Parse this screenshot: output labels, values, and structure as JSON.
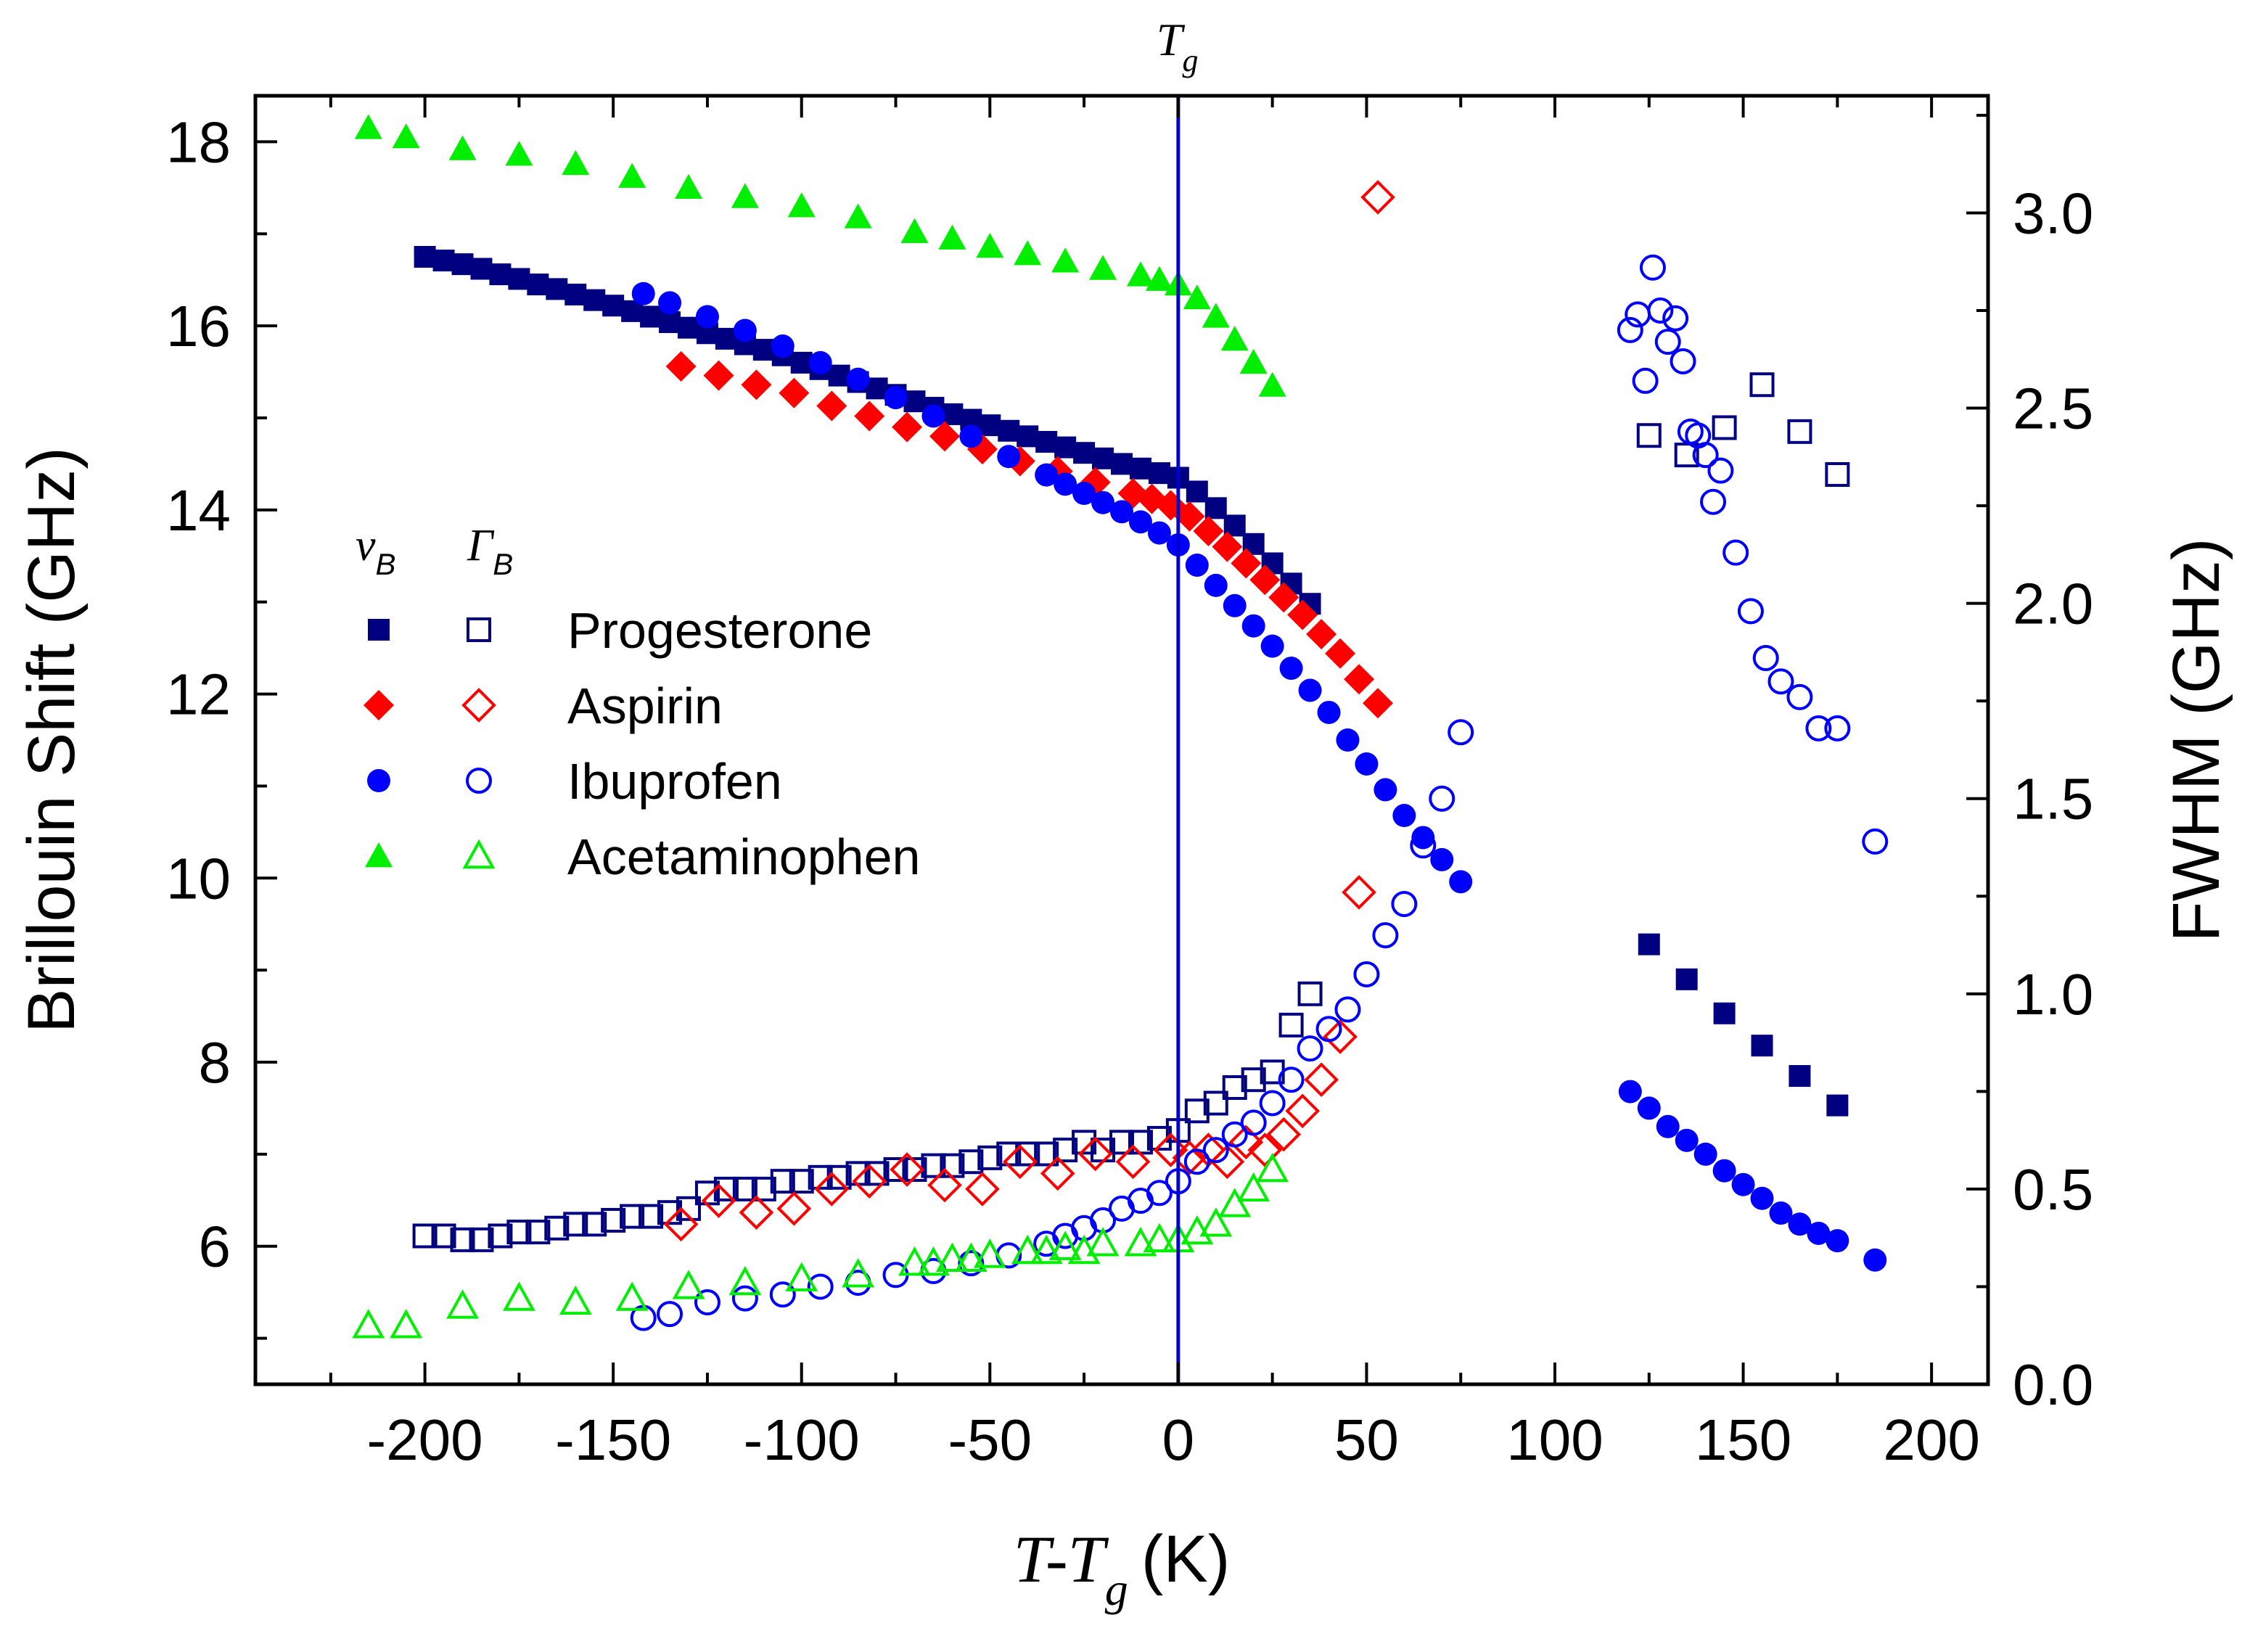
{
  "chart_data": {
    "type": "scatter",
    "title": "",
    "annotation": {
      "text": "T",
      "sub": "g"
    },
    "xaxis": {
      "label_italic": "T-T",
      "label_sub": "g",
      "label_unit": "(K)",
      "range": [
        -245,
        215
      ],
      "ticks": [
        -200,
        -150,
        -100,
        -50,
        0,
        50,
        100,
        150,
        200
      ]
    },
    "yaxis_left": {
      "label": "Brillouin Shift (GHz)",
      "range": [
        4.5,
        18.5
      ],
      "ticks": [
        6,
        8,
        10,
        12,
        14,
        16,
        18
      ]
    },
    "yaxis_right": {
      "label": "FWHM (GHz)",
      "range": [
        0.0,
        3.3
      ],
      "ticks": [
        "0.0",
        "0.5",
        "1.0",
        "1.5",
        "2.0",
        "2.5",
        "3.0"
      ]
    },
    "tg_line_x": 0,
    "legend": {
      "head_nu": "ν",
      "head_nu_sub": "B",
      "head_gamma": "Γ",
      "head_gamma_sub": "B",
      "entries": [
        {
          "name": "Progesterone",
          "color": "#000080",
          "marker": "square"
        },
        {
          "name": "Aspirin",
          "color": "#ff0000",
          "marker": "diamond"
        },
        {
          "name": "Ibuprofen",
          "color": "#0000ff",
          "marker": "circle"
        },
        {
          "name": "Acetaminophen",
          "color": "#00ee00",
          "marker": "triangle"
        }
      ]
    },
    "series": [
      {
        "name": "Progesterone",
        "quantity": "shift",
        "marker": "square",
        "filled": true,
        "color": "#000080",
        "x": [
          -200,
          -195,
          -190,
          -185,
          -180,
          -175,
          -170,
          -165,
          -160,
          -155,
          -150,
          -145,
          -140,
          -135,
          -130,
          -125,
          -120,
          -115,
          -110,
          -105,
          -100,
          -95,
          -90,
          -85,
          -80,
          -75,
          -70,
          -65,
          -60,
          -55,
          -50,
          -45,
          -40,
          -35,
          -30,
          -25,
          -20,
          -15,
          -10,
          -5,
          0,
          5,
          10,
          15,
          20,
          25,
          30,
          35,
          125,
          135,
          145,
          155,
          165,
          175
        ],
        "y": [
          16.75,
          16.71,
          16.67,
          16.62,
          16.56,
          16.51,
          16.45,
          16.4,
          16.34,
          16.28,
          16.22,
          16.16,
          16.1,
          16.04,
          15.98,
          15.92,
          15.86,
          15.8,
          15.74,
          15.68,
          15.6,
          15.53,
          15.46,
          15.39,
          15.32,
          15.25,
          15.18,
          15.11,
          15.04,
          14.98,
          14.92,
          14.86,
          14.8,
          14.74,
          14.68,
          14.62,
          14.56,
          14.5,
          14.45,
          14.4,
          14.35,
          14.2,
          14.02,
          13.83,
          13.63,
          13.42,
          13.2,
          12.98,
          9.28,
          8.9,
          8.53,
          8.18,
          7.85,
          7.53
        ]
      },
      {
        "name": "Progesterone",
        "quantity": "fwhm",
        "marker": "square",
        "filled": false,
        "color": "#000080",
        "x": [
          -200,
          -195,
          -190,
          -185,
          -180,
          -175,
          -170,
          -165,
          -160,
          -155,
          -150,
          -145,
          -140,
          -135,
          -130,
          -125,
          -120,
          -115,
          -110,
          -105,
          -100,
          -95,
          -90,
          -85,
          -80,
          -75,
          -70,
          -65,
          -60,
          -55,
          -50,
          -45,
          -40,
          -35,
          -30,
          -25,
          -20,
          -15,
          -10,
          -5,
          0,
          5,
          10,
          15,
          20,
          25,
          30,
          35,
          125,
          135,
          145,
          155,
          165,
          175
        ],
        "y": [
          0.38,
          0.38,
          0.37,
          0.37,
          0.38,
          0.39,
          0.39,
          0.4,
          0.41,
          0.41,
          0.42,
          0.43,
          0.43,
          0.44,
          0.45,
          0.49,
          0.5,
          0.5,
          0.5,
          0.52,
          0.52,
          0.53,
          0.53,
          0.54,
          0.54,
          0.55,
          0.55,
          0.56,
          0.56,
          0.57,
          0.58,
          0.59,
          0.59,
          0.59,
          0.6,
          0.62,
          0.6,
          0.62,
          0.62,
          0.63,
          0.65,
          0.7,
          0.72,
          0.76,
          0.78,
          0.8,
          0.92,
          1.0,
          2.43,
          2.38,
          2.45,
          2.56,
          2.44,
          2.33
        ]
      },
      {
        "name": "Aspirin",
        "quantity": "shift",
        "marker": "diamond",
        "filled": true,
        "color": "#ff0000",
        "x": [
          -132,
          -122,
          -112,
          -102,
          -92,
          -82,
          -72,
          -62,
          -52,
          -42,
          -32,
          -22,
          -12,
          -7,
          -2,
          3,
          8,
          13,
          18,
          23,
          28,
          33,
          38,
          43,
          48,
          53
        ],
        "y": [
          15.56,
          15.46,
          15.36,
          15.27,
          15.13,
          15.02,
          14.9,
          14.8,
          14.66,
          14.53,
          14.42,
          14.3,
          14.18,
          14.12,
          14.05,
          13.93,
          13.77,
          13.6,
          13.42,
          13.24,
          13.05,
          12.86,
          12.65,
          12.44,
          12.16,
          11.9
        ]
      },
      {
        "name": "Aspirin",
        "quantity": "fwhm",
        "marker": "diamond",
        "filled": false,
        "color": "#ff0000",
        "x": [
          -132,
          -122,
          -112,
          -102,
          -92,
          -82,
          -72,
          -62,
          -52,
          -42,
          -32,
          -22,
          -12,
          -2,
          3,
          8,
          13,
          18,
          23,
          28,
          33,
          38,
          43,
          48,
          53
        ],
        "y": [
          0.41,
          0.47,
          0.44,
          0.45,
          0.5,
          0.52,
          0.55,
          0.51,
          0.5,
          0.57,
          0.54,
          0.59,
          0.57,
          0.6,
          0.58,
          0.6,
          0.57,
          0.62,
          0.6,
          0.64,
          0.7,
          0.78,
          0.89,
          1.26,
          3.04
        ]
      },
      {
        "name": "Ibuprofen",
        "quantity": "shift",
        "marker": "circle",
        "filled": true,
        "color": "#0000ff",
        "x": [
          -142,
          -135,
          -125,
          -115,
          -105,
          -95,
          -85,
          -75,
          -65,
          -55,
          -45,
          -35,
          -30,
          -25,
          -20,
          -15,
          -10,
          -5,
          0,
          5,
          10,
          15,
          20,
          25,
          30,
          35,
          40,
          45,
          50,
          55,
          60,
          65,
          70,
          75,
          120,
          125,
          130,
          135,
          140,
          145,
          150,
          155,
          160,
          165,
          170,
          175,
          185
        ],
        "y": [
          16.35,
          16.25,
          16.1,
          15.95,
          15.78,
          15.6,
          15.42,
          15.22,
          15.02,
          14.8,
          14.58,
          14.38,
          14.28,
          14.18,
          14.08,
          13.98,
          13.87,
          13.75,
          13.62,
          13.4,
          13.18,
          12.96,
          12.74,
          12.52,
          12.28,
          12.04,
          11.8,
          11.5,
          11.24,
          10.96,
          10.68,
          10.44,
          10.2,
          9.96,
          7.68,
          7.5,
          7.3,
          7.15,
          7.0,
          6.82,
          6.67,
          6.52,
          6.36,
          6.24,
          6.14,
          6.06,
          5.85
        ]
      },
      {
        "name": "Ibuprofen",
        "quantity": "fwhm",
        "marker": "circle",
        "filled": false,
        "color": "#0000ff",
        "x": [
          -142,
          -135,
          -125,
          -115,
          -105,
          -95,
          -85,
          -75,
          -65,
          -55,
          -45,
          -35,
          -30,
          -25,
          -20,
          -15,
          -10,
          -5,
          0,
          5,
          10,
          15,
          20,
          25,
          30,
          35,
          40,
          45,
          50,
          55,
          60,
          65,
          70,
          75,
          120,
          122,
          124,
          126,
          128,
          130,
          132,
          134,
          136,
          138,
          140,
          142,
          144,
          148,
          152,
          156,
          160,
          165,
          170,
          175,
          185
        ],
        "y": [
          0.17,
          0.18,
          0.21,
          0.22,
          0.23,
          0.25,
          0.26,
          0.28,
          0.29,
          0.31,
          0.33,
          0.36,
          0.38,
          0.4,
          0.42,
          0.45,
          0.47,
          0.49,
          0.52,
          0.57,
          0.6,
          0.64,
          0.67,
          0.72,
          0.78,
          0.86,
          0.91,
          0.96,
          1.05,
          1.15,
          1.23,
          1.38,
          1.5,
          1.67,
          2.7,
          2.74,
          2.57,
          2.86,
          2.75,
          2.67,
          2.73,
          2.62,
          2.44,
          2.43,
          2.38,
          2.26,
          2.34,
          2.13,
          1.98,
          1.86,
          1.8,
          1.76,
          1.68,
          1.68,
          1.39
        ]
      },
      {
        "name": "Acetaminophen",
        "quantity": "shift",
        "marker": "triangle",
        "filled": true,
        "color": "#00ee00",
        "x": [
          -215,
          -205,
          -190,
          -175,
          -160,
          -145,
          -130,
          -115,
          -100,
          -85,
          -70,
          -60,
          -50,
          -40,
          -30,
          -20,
          -10,
          -5,
          0,
          5,
          10,
          15,
          20,
          25
        ],
        "y": [
          18.15,
          18.05,
          17.92,
          17.86,
          17.76,
          17.62,
          17.5,
          17.4,
          17.3,
          17.18,
          17.02,
          16.95,
          16.86,
          16.78,
          16.7,
          16.62,
          16.55,
          16.5,
          16.45,
          16.3,
          16.1,
          15.85,
          15.6,
          15.35
        ]
      },
      {
        "name": "Acetaminophen",
        "quantity": "fwhm",
        "marker": "triangle",
        "filled": false,
        "color": "#00ee00",
        "x": [
          -215,
          -205,
          -190,
          -175,
          -160,
          -145,
          -130,
          -115,
          -100,
          -85,
          -70,
          -65,
          -60,
          -55,
          -50,
          -40,
          -35,
          -30,
          -25,
          -20,
          -10,
          -5,
          0,
          5,
          10,
          15,
          20,
          25
        ],
        "y": [
          0.15,
          0.15,
          0.2,
          0.22,
          0.21,
          0.22,
          0.25,
          0.26,
          0.27,
          0.28,
          0.31,
          0.31,
          0.32,
          0.32,
          0.33,
          0.34,
          0.34,
          0.35,
          0.34,
          0.36,
          0.36,
          0.37,
          0.37,
          0.39,
          0.41,
          0.46,
          0.5,
          0.55
        ]
      }
    ]
  }
}
